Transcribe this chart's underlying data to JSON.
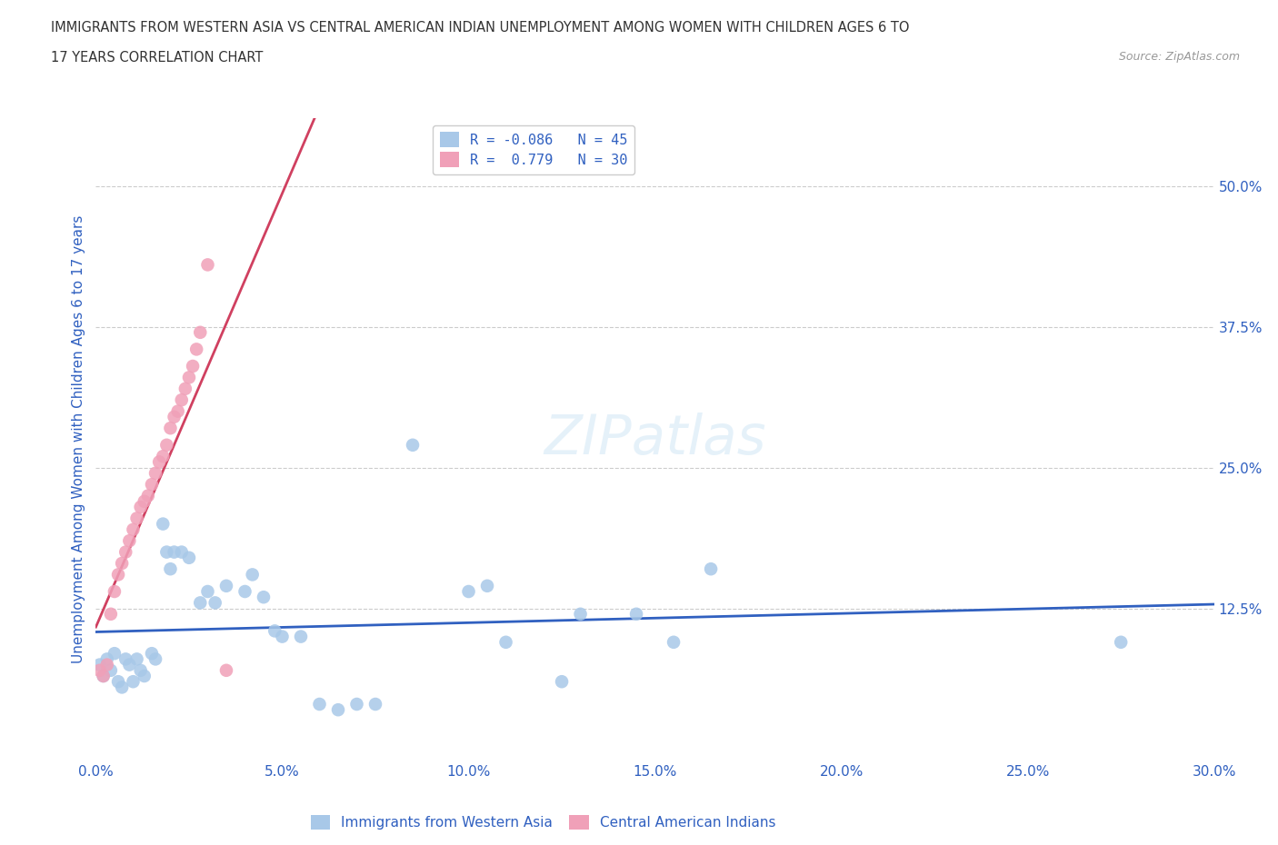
{
  "title_line1": "IMMIGRANTS FROM WESTERN ASIA VS CENTRAL AMERICAN INDIAN UNEMPLOYMENT AMONG WOMEN WITH CHILDREN AGES 6 TO",
  "title_line2": "17 YEARS CORRELATION CHART",
  "source": "Source: ZipAtlas.com",
  "ylabel": "Unemployment Among Women with Children Ages 6 to 17 years",
  "xlim": [
    0.0,
    0.3
  ],
  "ylim": [
    -0.01,
    0.56
  ],
  "xtick_vals": [
    0.0,
    0.05,
    0.1,
    0.15,
    0.2,
    0.25,
    0.3
  ],
  "xtick_labels": [
    "0.0%",
    "5.0%",
    "10.0%",
    "15.0%",
    "20.0%",
    "25.0%",
    "30.0%"
  ],
  "ytick_vals": [
    0.125,
    0.25,
    0.375,
    0.5
  ],
  "ytick_labels": [
    "12.5%",
    "25.0%",
    "37.5%",
    "50.0%"
  ],
  "grid_color": "#cccccc",
  "bg_color": "#ffffff",
  "color_blue": "#a8c8e8",
  "color_pink": "#f0a0b8",
  "line_blue": "#3060c0",
  "line_pink": "#d04060",
  "label_blue": "Immigrants from Western Asia",
  "label_pink": "Central American Indians",
  "text_color": "#3060c0",
  "title_color": "#333333",
  "blue_points": [
    [
      0.001,
      0.075
    ],
    [
      0.002,
      0.065
    ],
    [
      0.003,
      0.08
    ],
    [
      0.004,
      0.07
    ],
    [
      0.005,
      0.085
    ],
    [
      0.006,
      0.06
    ],
    [
      0.007,
      0.055
    ],
    [
      0.008,
      0.08
    ],
    [
      0.009,
      0.075
    ],
    [
      0.01,
      0.06
    ],
    [
      0.011,
      0.08
    ],
    [
      0.012,
      0.07
    ],
    [
      0.013,
      0.065
    ],
    [
      0.015,
      0.085
    ],
    [
      0.016,
      0.08
    ],
    [
      0.018,
      0.2
    ],
    [
      0.019,
      0.175
    ],
    [
      0.02,
      0.16
    ],
    [
      0.021,
      0.175
    ],
    [
      0.023,
      0.175
    ],
    [
      0.025,
      0.17
    ],
    [
      0.028,
      0.13
    ],
    [
      0.03,
      0.14
    ],
    [
      0.032,
      0.13
    ],
    [
      0.035,
      0.145
    ],
    [
      0.04,
      0.14
    ],
    [
      0.042,
      0.155
    ],
    [
      0.045,
      0.135
    ],
    [
      0.048,
      0.105
    ],
    [
      0.05,
      0.1
    ],
    [
      0.055,
      0.1
    ],
    [
      0.06,
      0.04
    ],
    [
      0.065,
      0.035
    ],
    [
      0.07,
      0.04
    ],
    [
      0.075,
      0.04
    ],
    [
      0.085,
      0.27
    ],
    [
      0.1,
      0.14
    ],
    [
      0.105,
      0.145
    ],
    [
      0.11,
      0.095
    ],
    [
      0.125,
      0.06
    ],
    [
      0.13,
      0.12
    ],
    [
      0.145,
      0.12
    ],
    [
      0.155,
      0.095
    ],
    [
      0.165,
      0.16
    ],
    [
      0.275,
      0.095
    ]
  ],
  "pink_points": [
    [
      0.001,
      0.07
    ],
    [
      0.002,
      0.065
    ],
    [
      0.003,
      0.075
    ],
    [
      0.004,
      0.12
    ],
    [
      0.005,
      0.14
    ],
    [
      0.006,
      0.155
    ],
    [
      0.007,
      0.165
    ],
    [
      0.008,
      0.175
    ],
    [
      0.009,
      0.185
    ],
    [
      0.01,
      0.195
    ],
    [
      0.011,
      0.205
    ],
    [
      0.012,
      0.215
    ],
    [
      0.013,
      0.22
    ],
    [
      0.014,
      0.225
    ],
    [
      0.015,
      0.235
    ],
    [
      0.016,
      0.245
    ],
    [
      0.017,
      0.255
    ],
    [
      0.018,
      0.26
    ],
    [
      0.019,
      0.27
    ],
    [
      0.02,
      0.285
    ],
    [
      0.021,
      0.295
    ],
    [
      0.022,
      0.3
    ],
    [
      0.023,
      0.31
    ],
    [
      0.024,
      0.32
    ],
    [
      0.025,
      0.33
    ],
    [
      0.026,
      0.34
    ],
    [
      0.027,
      0.355
    ],
    [
      0.028,
      0.37
    ],
    [
      0.03,
      0.43
    ],
    [
      0.035,
      0.07
    ]
  ]
}
